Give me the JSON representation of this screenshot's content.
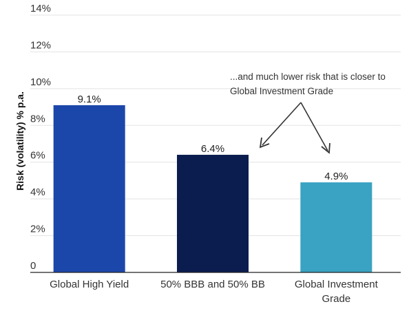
{
  "chart_data": {
    "type": "bar",
    "title": "",
    "xlabel": "",
    "ylabel": "Risk (volatility) % p.a.",
    "ylim": [
      0,
      14
    ],
    "yticks": [
      {
        "value": 0,
        "label": "0"
      },
      {
        "value": 2,
        "label": "2%"
      },
      {
        "value": 4,
        "label": "4%"
      },
      {
        "value": 6,
        "label": "6%"
      },
      {
        "value": 8,
        "label": "8%"
      },
      {
        "value": 10,
        "label": "10%"
      },
      {
        "value": 12,
        "label": "12%"
      },
      {
        "value": 14,
        "label": "14%"
      }
    ],
    "grid": true,
    "categories": [
      [
        "Global High Yield"
      ],
      [
        "50% BBB and 50% BB"
      ],
      [
        "Global Investment",
        "Grade"
      ]
    ],
    "values": [
      9.1,
      6.4,
      4.9
    ],
    "data_labels": [
      "9.1%",
      "6.4%",
      "4.9%"
    ],
    "colors": [
      "#1c47aa",
      "#0b1c4e",
      "#3aa2c2"
    ],
    "annotation": {
      "lines": [
        "...and much lower risk that is closer to",
        "Global  Investment Grade"
      ]
    }
  }
}
